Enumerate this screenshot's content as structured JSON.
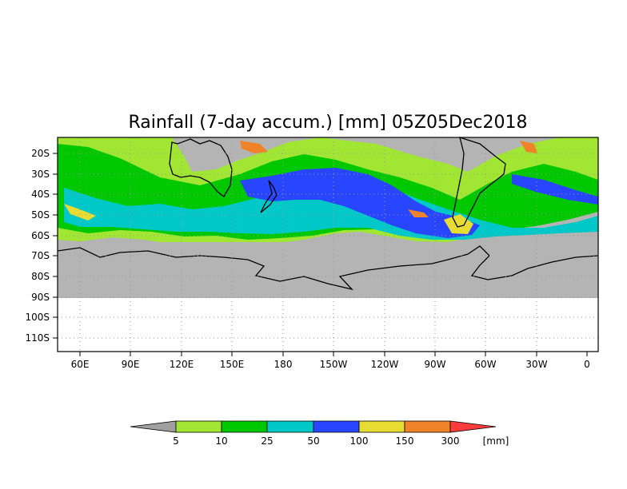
{
  "title": "Rainfall (7-day accum.) [mm] 05Z05Dec2018",
  "map": {
    "lat_labels": [
      "20S",
      "30S",
      "40S",
      "50S",
      "60S",
      "70S",
      "80S",
      "90S",
      "100S",
      "110S"
    ],
    "lon_labels": [
      "60E",
      "90E",
      "120E",
      "150E",
      "180",
      "150W",
      "120W",
      "90W",
      "60W",
      "30W",
      "0"
    ],
    "lat_range_deg": [
      -115,
      -15
    ],
    "lon_range_deg": [
      45,
      365
    ],
    "data_extent_lat": [
      -15,
      -90
    ],
    "no_data_color": "#b4b4b4",
    "grid": "dotted"
  },
  "colorbar": {
    "thresholds": [
      "5",
      "10",
      "25",
      "50",
      "100",
      "150",
      "300"
    ],
    "unit": "[mm]",
    "colors": [
      "#a0a0a0",
      "#a0e632",
      "#00c800",
      "#00c8c8",
      "#2846ff",
      "#e6dc32",
      "#f08228",
      "#fa3c3c"
    ]
  }
}
